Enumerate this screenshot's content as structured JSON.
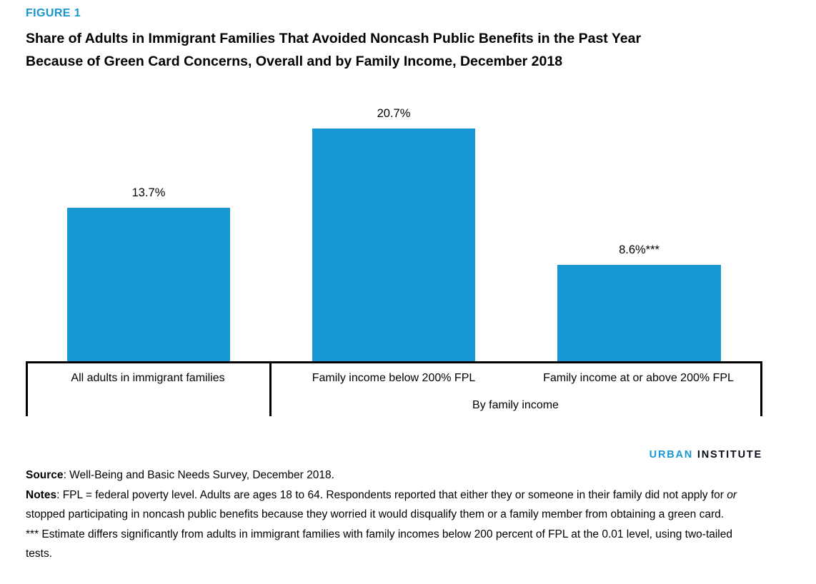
{
  "figure_label": "FIGURE 1",
  "title_line1": "Share of Adults in Immigrant Families That Avoided Noncash Public Benefits in the Past Year",
  "title_line2": "Because of Green Card Concerns, Overall and by Family Income, December 2018",
  "chart_data": {
    "type": "bar",
    "title": "Share of Adults in Immigrant Families That Avoided Noncash Public Benefits in the Past Year Because of Green Card Concerns, Overall and by Family Income, December 2018",
    "categories": [
      "All adults in immigrant families",
      "Family income below 200% FPL",
      "Family income at or above 200% FPL"
    ],
    "values": [
      13.7,
      20.7,
      8.6
    ],
    "value_labels": [
      "13.7%",
      "20.7%",
      "8.6%***"
    ],
    "group_label": "By family income",
    "group_members": [
      "Family income below 200% FPL",
      "Family income at or above 200% FPL"
    ],
    "unit": "percent",
    "ylim": [
      0,
      23
    ],
    "bar_color": "#1696d2",
    "axis_color": "#000000",
    "gridlines": false,
    "legend": "none",
    "value_labels_position": "above bars",
    "xlabel": "",
    "ylabel": ""
  },
  "branding": {
    "urban": "URBAN",
    "institute": "INSTITUTE"
  },
  "source": {
    "prefix": "Source",
    "text": ": Well-Being and Basic Needs Survey, December 2018."
  },
  "notes": {
    "prefix": "Notes",
    "part1": ": FPL = federal poverty level. Adults are ages 18 to 64. Respondents reported that either they or someone in their family did not apply for ",
    "italic_word": "or",
    "part2": " stopped participating in noncash public benefits because they worried it would disqualify them or a family member from obtaining a green card."
  },
  "significance_note": "*** Estimate differs significantly from adults in immigrant families with family incomes below 200 percent of FPL at the 0.01 level, using two-tailed tests."
}
